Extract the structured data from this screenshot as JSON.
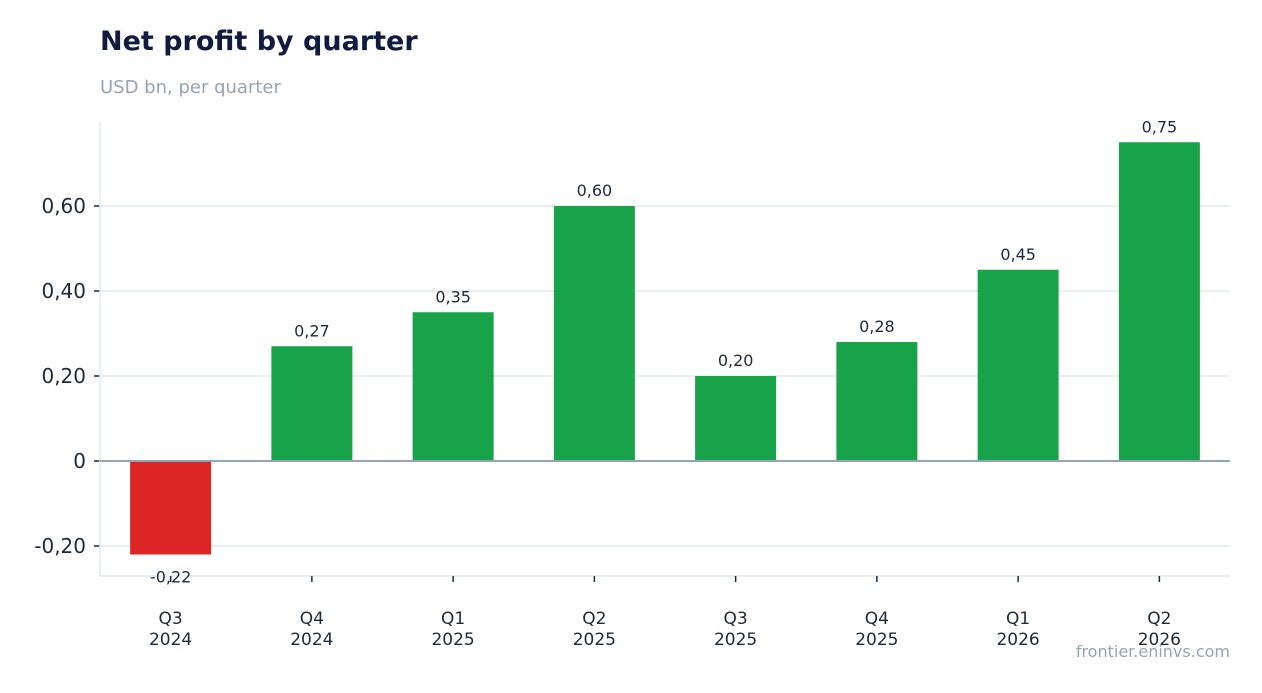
{
  "chart_data": {
    "type": "bar",
    "title": "Net profit by quarter",
    "subtitle": "USD bn, per quarter",
    "xlabel": "",
    "ylabel": "",
    "categories": [
      [
        "Q3",
        "2024"
      ],
      [
        "Q4",
        "2024"
      ],
      [
        "Q1",
        "2025"
      ],
      [
        "Q2",
        "2025"
      ],
      [
        "Q3",
        "2025"
      ],
      [
        "Q4",
        "2025"
      ],
      [
        "Q1",
        "2026"
      ],
      [
        "Q2",
        "2026"
      ]
    ],
    "values": [
      -0.22,
      0.27,
      0.35,
      0.6,
      0.2,
      0.28,
      0.45,
      0.75
    ],
    "value_labels": [
      "-0,22",
      "0,27",
      "0,35",
      "0,60",
      "0,20",
      "0,28",
      "0,45",
      "0,75"
    ],
    "yticks": [
      -0.2,
      0,
      0.2,
      0.4,
      0.6
    ],
    "ytick_labels": [
      "-0,20",
      "0",
      "0,20",
      "0,40",
      "0,60"
    ],
    "ylim": [
      -0.27,
      0.8
    ],
    "grid": true,
    "colors": {
      "positive": "#18a34a",
      "negative": "#dc2626",
      "grid": "#e2e8f0",
      "zero_line": "#94a3b8"
    }
  },
  "source": "frontier.eninvs.com"
}
